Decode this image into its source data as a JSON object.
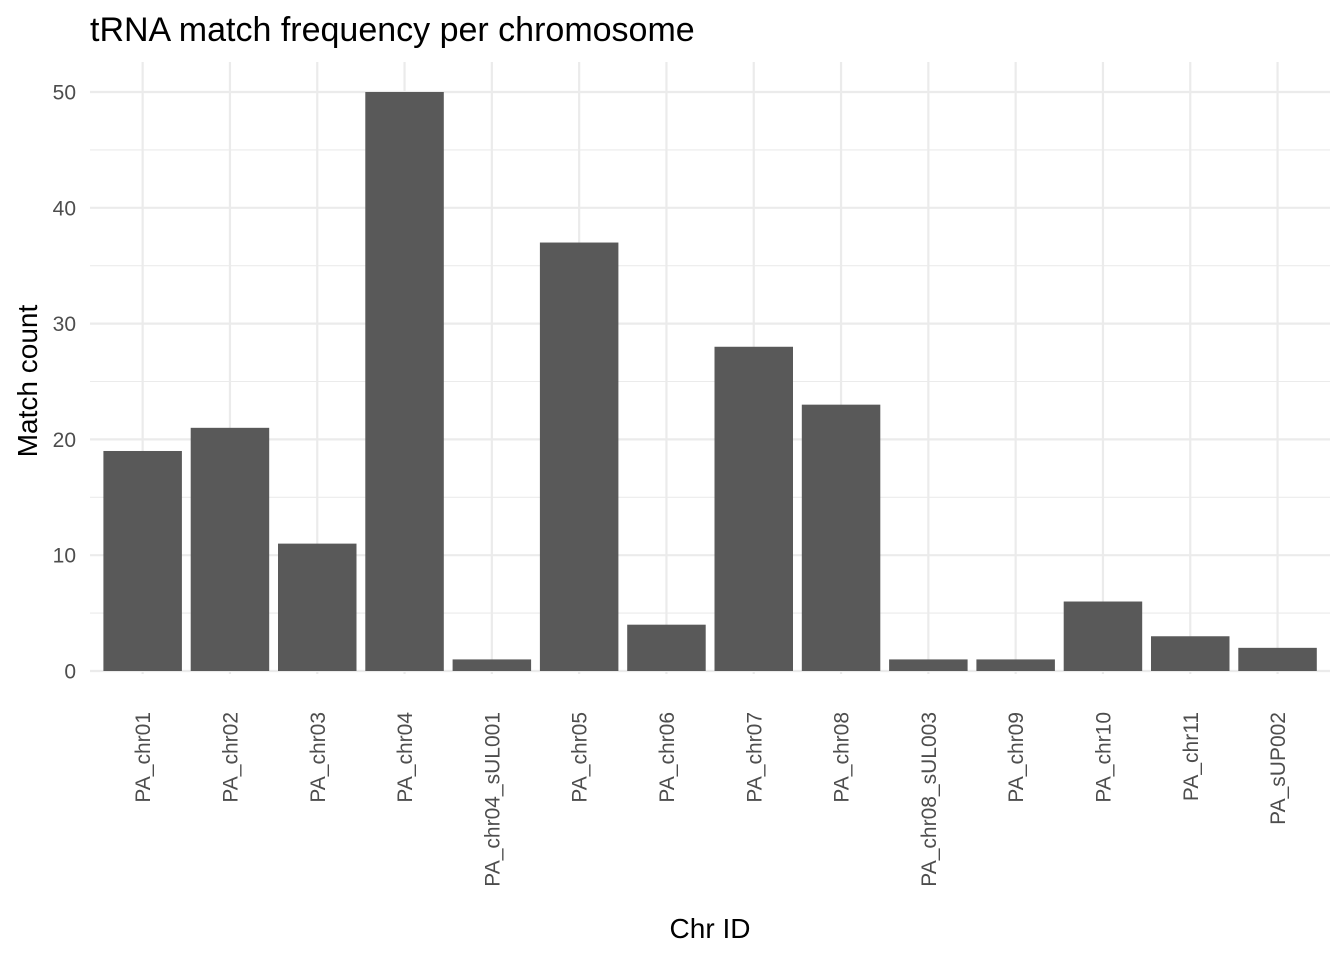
{
  "chart_data": {
    "type": "bar",
    "title": "tRNA match frequency per chromosome",
    "xlabel": "Chr ID",
    "ylabel": "Match count",
    "categories": [
      "PA_chr01",
      "PA_chr02",
      "PA_chr03",
      "PA_chr04",
      "PA_chr04_sUL001",
      "PA_chr05",
      "PA_chr06",
      "PA_chr07",
      "PA_chr08",
      "PA_chr08_sUL003",
      "PA_chr09",
      "PA_chr10",
      "PA_chr11",
      "PA_sUP002"
    ],
    "values": [
      19,
      21,
      11,
      50,
      1,
      37,
      4,
      28,
      23,
      1,
      1,
      6,
      3,
      2
    ],
    "ylim": [
      0,
      52.5
    ],
    "yticks": [
      0,
      10,
      20,
      30,
      40,
      50
    ],
    "grid": true,
    "legend": "none",
    "bar_color": "#595959",
    "grid_color": "#ebebeb",
    "background": "#ffffff"
  }
}
